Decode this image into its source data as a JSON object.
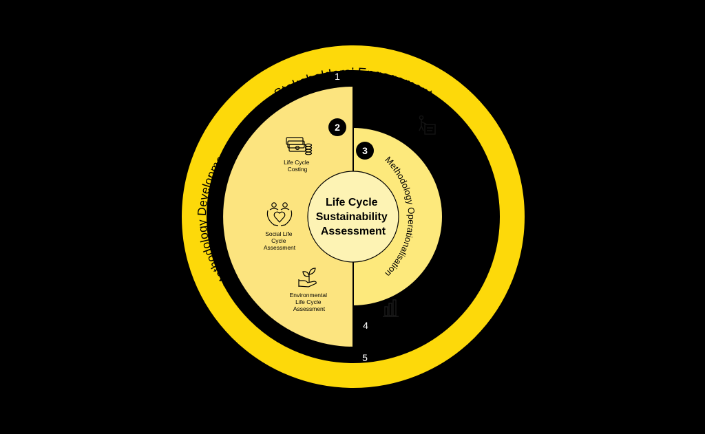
{
  "colors": {
    "background": "#000000",
    "outer_ring": "#fdd90a",
    "half_disc": "#fce47f",
    "ops_disc": "#fde97c",
    "center_disc": "#fdf3b4",
    "badge": "#000000"
  },
  "outer_ring": {
    "label": "Stakeholders’ Engagement"
  },
  "steps": {
    "step1": "1",
    "step2": "2",
    "step3": "3",
    "step4": "4",
    "step5": "5"
  },
  "methodology_development": {
    "label": "Methodology Development",
    "items": [
      {
        "icon": "money-stack-icon",
        "lines": [
          "Life Cycle",
          "Costing"
        ]
      },
      {
        "icon": "people-heart-icon",
        "lines": [
          "Social Life",
          "Cycle",
          "Assessment"
        ]
      },
      {
        "icon": "plant-hand-icon",
        "lines": [
          "Environmental",
          "Life Cycle",
          "Assessment"
        ]
      }
    ]
  },
  "methodology_operationalisation": {
    "label": "Methodology Operationalisation",
    "icons": [
      "presenter-board-icon",
      "bar-chart-icon"
    ]
  },
  "center": {
    "lines": [
      "Life Cycle",
      "Sustainability",
      "Assessment"
    ]
  }
}
